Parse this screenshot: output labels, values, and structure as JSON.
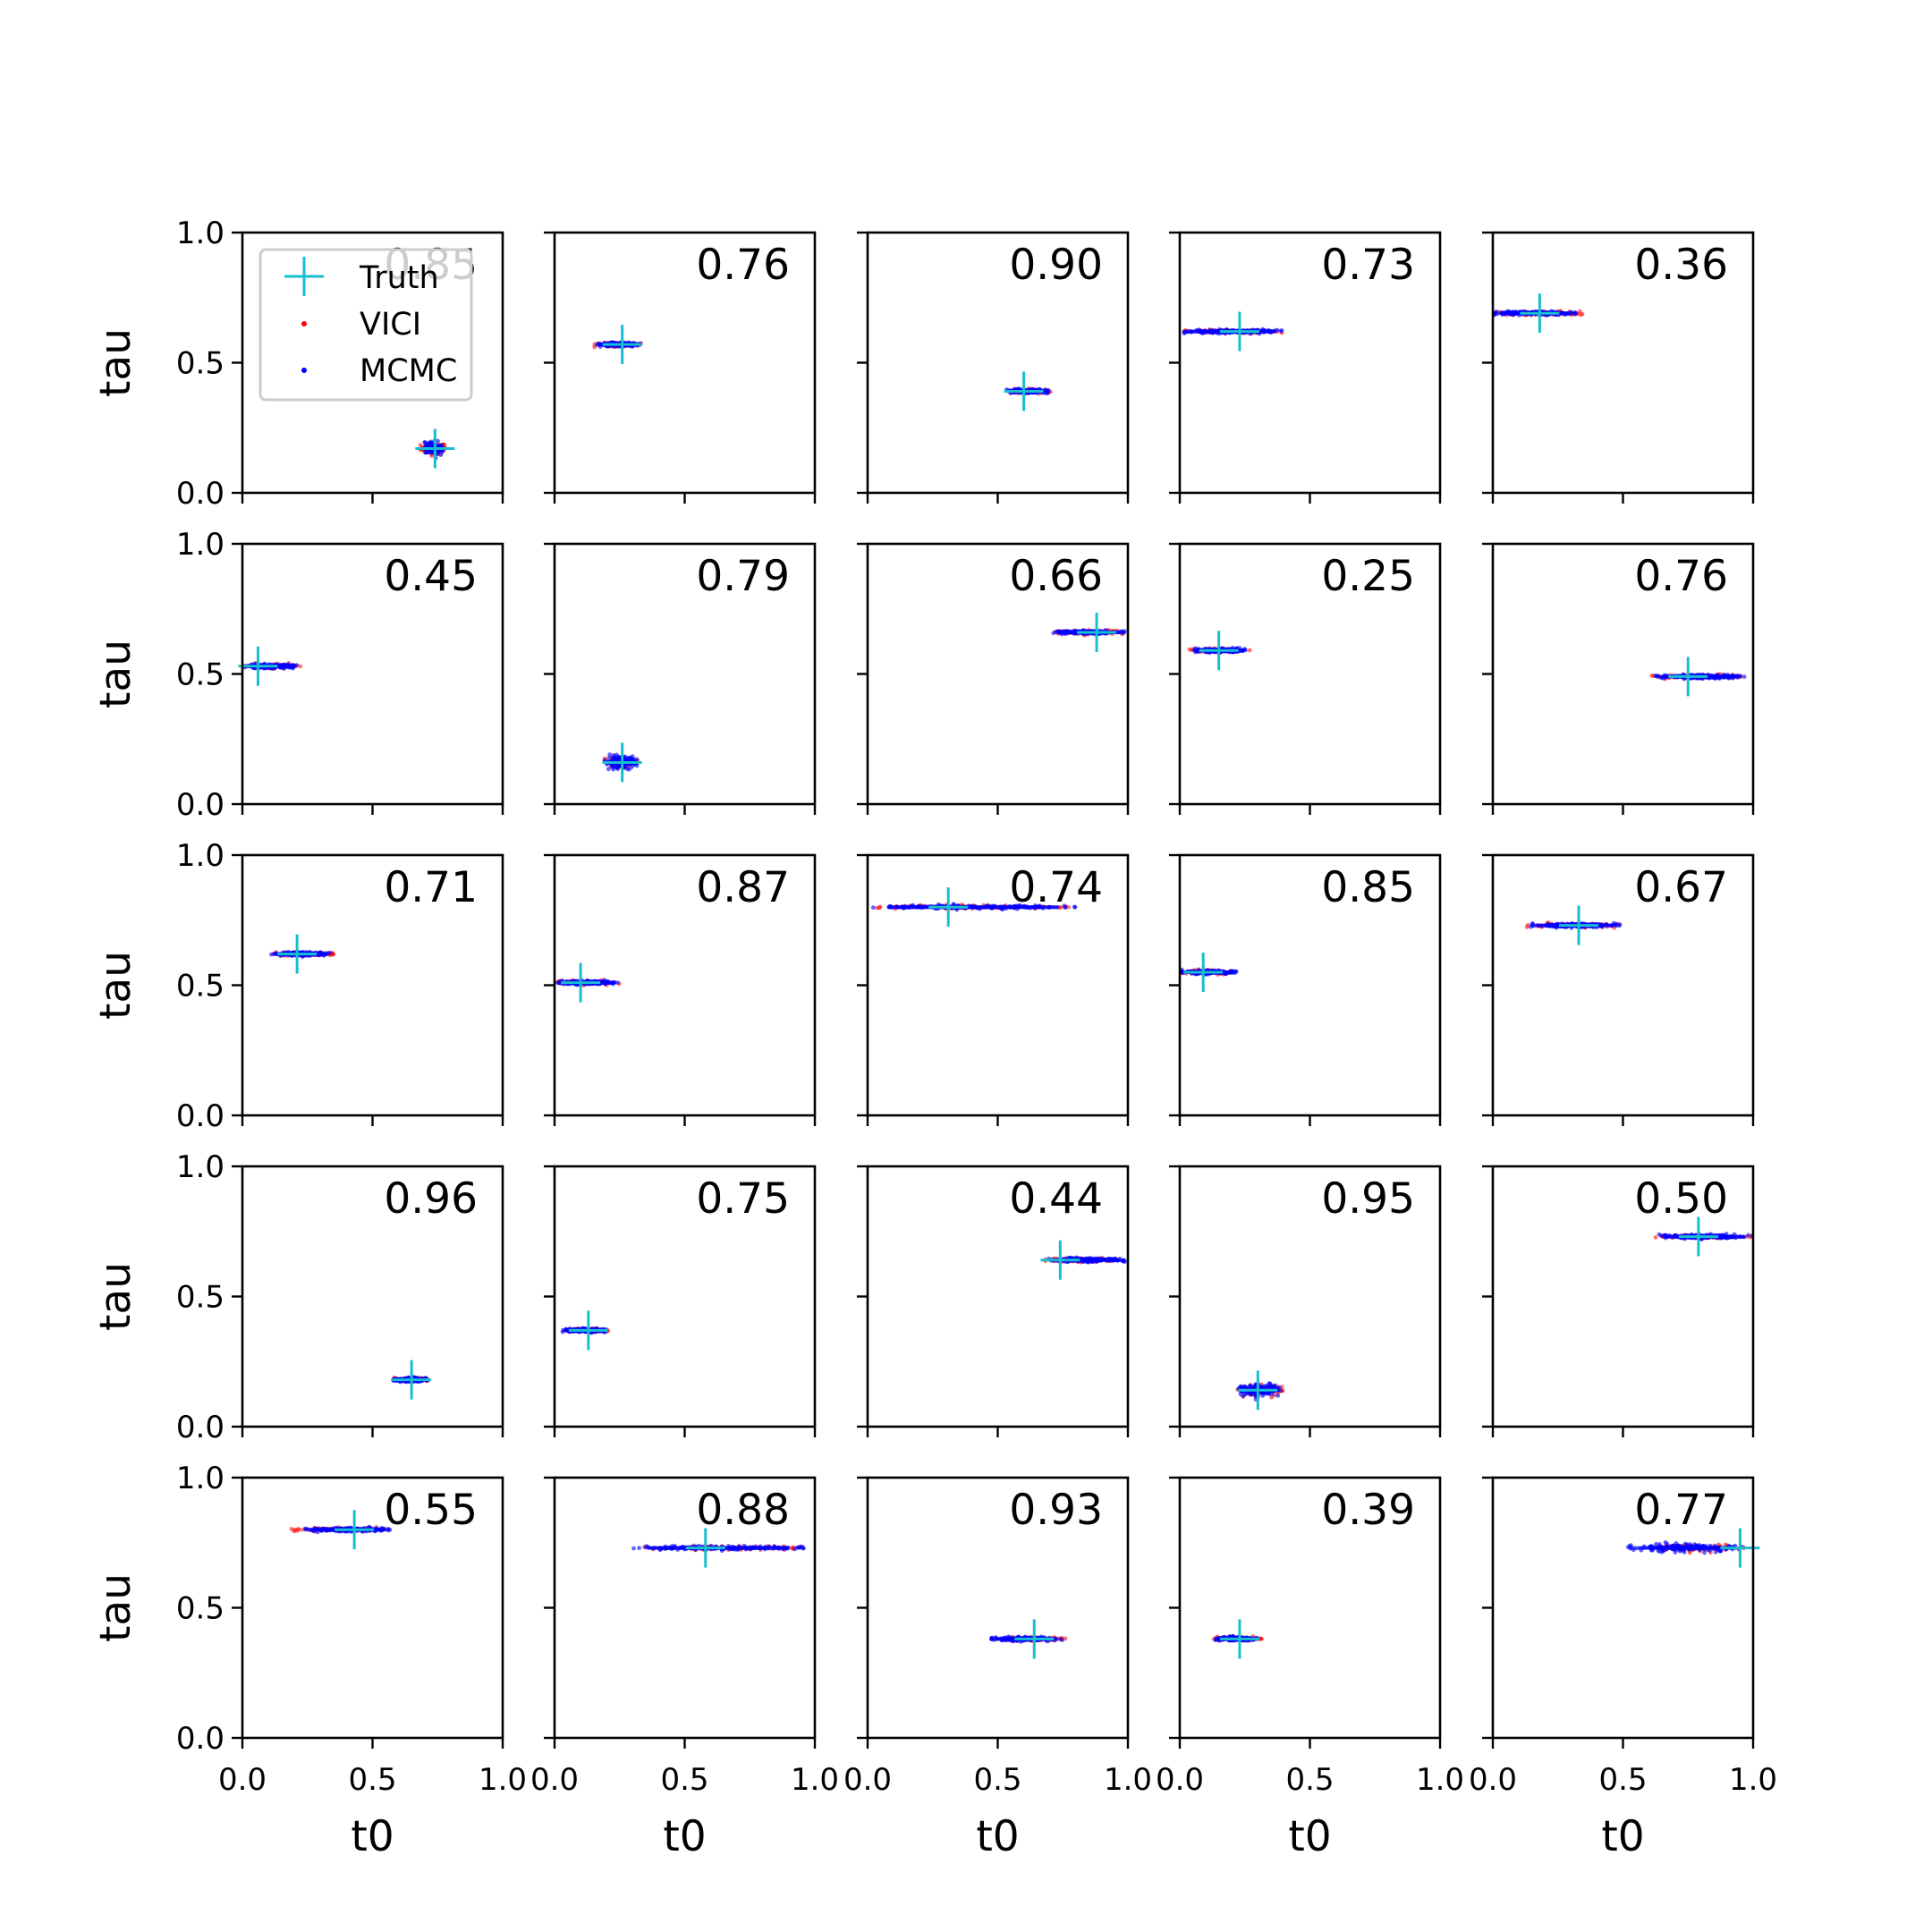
{
  "colors": {
    "truth": "#17becf",
    "vici": "#ff0000",
    "mcmc": "#0000ff",
    "axes": "#000000"
  },
  "legend": {
    "truth": "Truth",
    "vici": "VICI",
    "mcmc": "MCMC",
    "placement": "upper-left of first panel"
  },
  "chart_data": {
    "type": "scatter",
    "layout": "5x5 grid",
    "xlabel": "t0",
    "ylabel": "tau",
    "xlim": [
      0,
      1
    ],
    "ylim": [
      0,
      1
    ],
    "xticks": [
      "0.0",
      "0.5",
      "1.0"
    ],
    "yticks": [
      "0.0",
      "0.5",
      "1.0"
    ],
    "grid": false,
    "panels": [
      {
        "score": "0.85",
        "truth": [
          0.74,
          0.17
        ],
        "mcmc": [
          0.7,
          0.77
        ],
        "vici": [
          0.68,
          0.79
        ],
        "spread_y": 0.03
      },
      {
        "score": "0.76",
        "truth": [
          0.26,
          0.57
        ],
        "mcmc": [
          0.16,
          0.33
        ],
        "vici": [
          0.15,
          0.34
        ],
        "spread_y": 0.01
      },
      {
        "score": "0.90",
        "truth": [
          0.6,
          0.39
        ],
        "mcmc": [
          0.53,
          0.7
        ],
        "vici": [
          0.53,
          0.71
        ],
        "spread_y": 0.01
      },
      {
        "score": "0.73",
        "truth": [
          0.23,
          0.62
        ],
        "mcmc": [
          0.01,
          0.4
        ],
        "vici": [
          0.0,
          0.4
        ],
        "spread_y": 0.01
      },
      {
        "score": "0.36",
        "truth": [
          0.18,
          0.69
        ],
        "mcmc": [
          0.0,
          0.32
        ],
        "vici": [
          0.0,
          0.35
        ],
        "spread_y": 0.01
      },
      {
        "score": "0.45",
        "truth": [
          0.06,
          0.53
        ],
        "mcmc": [
          0.0,
          0.21
        ],
        "vici": [
          0.0,
          0.23
        ],
        "spread_y": 0.01
      },
      {
        "score": "0.79",
        "truth": [
          0.26,
          0.16
        ],
        "mcmc": [
          0.19,
          0.32
        ],
        "vici": [
          0.19,
          0.32
        ],
        "spread_y": 0.03
      },
      {
        "score": "0.66",
        "truth": [
          0.88,
          0.66
        ],
        "mcmc": [
          0.71,
          0.99
        ],
        "vici": [
          0.71,
          1.0
        ],
        "spread_y": 0.01
      },
      {
        "score": "0.25",
        "truth": [
          0.15,
          0.59
        ],
        "mcmc": [
          0.05,
          0.26
        ],
        "vici": [
          0.02,
          0.27
        ],
        "spread_y": 0.01
      },
      {
        "score": "0.76",
        "truth": [
          0.75,
          0.49
        ],
        "mcmc": [
          0.62,
          0.98
        ],
        "vici": [
          0.61,
          0.97
        ],
        "spread_y": 0.01
      },
      {
        "score": "0.71",
        "truth": [
          0.21,
          0.62
        ],
        "mcmc": [
          0.11,
          0.34
        ],
        "vici": [
          0.11,
          0.35
        ],
        "spread_y": 0.01
      },
      {
        "score": "0.87",
        "truth": [
          0.1,
          0.51
        ],
        "mcmc": [
          0.01,
          0.25
        ],
        "vici": [
          0.01,
          0.25
        ],
        "spread_y": 0.01
      },
      {
        "score": "0.74",
        "truth": [
          0.31,
          0.8
        ],
        "mcmc": [
          0.0,
          0.81
        ],
        "vici": [
          0.0,
          0.86
        ],
        "spread_y": 0.01
      },
      {
        "score": "0.85",
        "truth": [
          0.09,
          0.55
        ],
        "mcmc": [
          0.0,
          0.22
        ],
        "vici": [
          0.0,
          0.22
        ],
        "spread_y": 0.01
      },
      {
        "score": "0.67",
        "truth": [
          0.33,
          0.73
        ],
        "mcmc": [
          0.14,
          0.49
        ],
        "vici": [
          0.13,
          0.5
        ],
        "spread_y": 0.01
      },
      {
        "score": "0.96",
        "truth": [
          0.65,
          0.18
        ],
        "mcmc": [
          0.58,
          0.71
        ],
        "vici": [
          0.58,
          0.72
        ],
        "spread_y": 0.01
      },
      {
        "score": "0.75",
        "truth": [
          0.13,
          0.37
        ],
        "mcmc": [
          0.03,
          0.2
        ],
        "vici": [
          0.03,
          0.22
        ],
        "spread_y": 0.01
      },
      {
        "score": "0.44",
        "truth": [
          0.74,
          0.64
        ],
        "mcmc": [
          0.69,
          0.99
        ],
        "vici": [
          0.68,
          1.0
        ],
        "spread_y": 0.01
      },
      {
        "score": "0.95",
        "truth": [
          0.3,
          0.14
        ],
        "mcmc": [
          0.22,
          0.39
        ],
        "vici": [
          0.22,
          0.4
        ],
        "spread_y": 0.03
      },
      {
        "score": "0.50",
        "truth": [
          0.79,
          0.73
        ],
        "mcmc": [
          0.62,
          1.0
        ],
        "vici": [
          0.62,
          1.0
        ],
        "spread_y": 0.01
      },
      {
        "score": "0.55",
        "truth": [
          0.43,
          0.8
        ],
        "mcmc": [
          0.24,
          0.58
        ],
        "vici": [
          0.18,
          0.57
        ],
        "spread_y": 0.01
      },
      {
        "score": "0.88",
        "truth": [
          0.58,
          0.73
        ],
        "mcmc": [
          0.3,
          0.96
        ],
        "vici": [
          0.33,
          0.99
        ],
        "spread_y": 0.01
      },
      {
        "score": "0.93",
        "truth": [
          0.64,
          0.38
        ],
        "mcmc": [
          0.47,
          0.75
        ],
        "vici": [
          0.47,
          0.77
        ],
        "spread_y": 0.01
      },
      {
        "score": "0.39",
        "truth": [
          0.23,
          0.38
        ],
        "mcmc": [
          0.13,
          0.31
        ],
        "vici": [
          0.13,
          0.33
        ],
        "spread_y": 0.01
      },
      {
        "score": "0.77",
        "truth": [
          0.95,
          0.73
        ],
        "mcmc": [
          0.52,
          0.96
        ],
        "vici": [
          0.6,
          0.97
        ],
        "spread_y": 0.02
      }
    ]
  }
}
